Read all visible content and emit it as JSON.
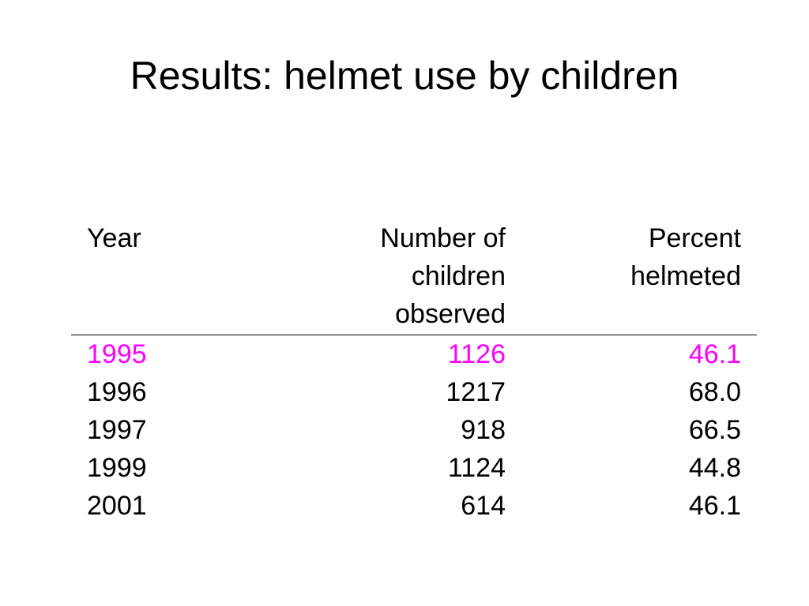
{
  "title": "Results: helmet use by children",
  "table": {
    "headers": {
      "year": [
        "Year"
      ],
      "number": [
        "Number of",
        "children",
        "observed"
      ],
      "percent": [
        "Percent",
        "helmeted"
      ]
    },
    "rows": [
      {
        "year": "1995",
        "number": "1126",
        "percent": "46.1"
      },
      {
        "year": "1996",
        "number": "1217",
        "percent": "68.0"
      },
      {
        "year": "1997",
        "number": "918",
        "percent": "66.5"
      },
      {
        "year": "1999",
        "number": "1124",
        "percent": "44.8"
      },
      {
        "year": "2001",
        "number": "614",
        "percent": "46.1"
      }
    ],
    "highlight_color": "#ff00ff"
  }
}
